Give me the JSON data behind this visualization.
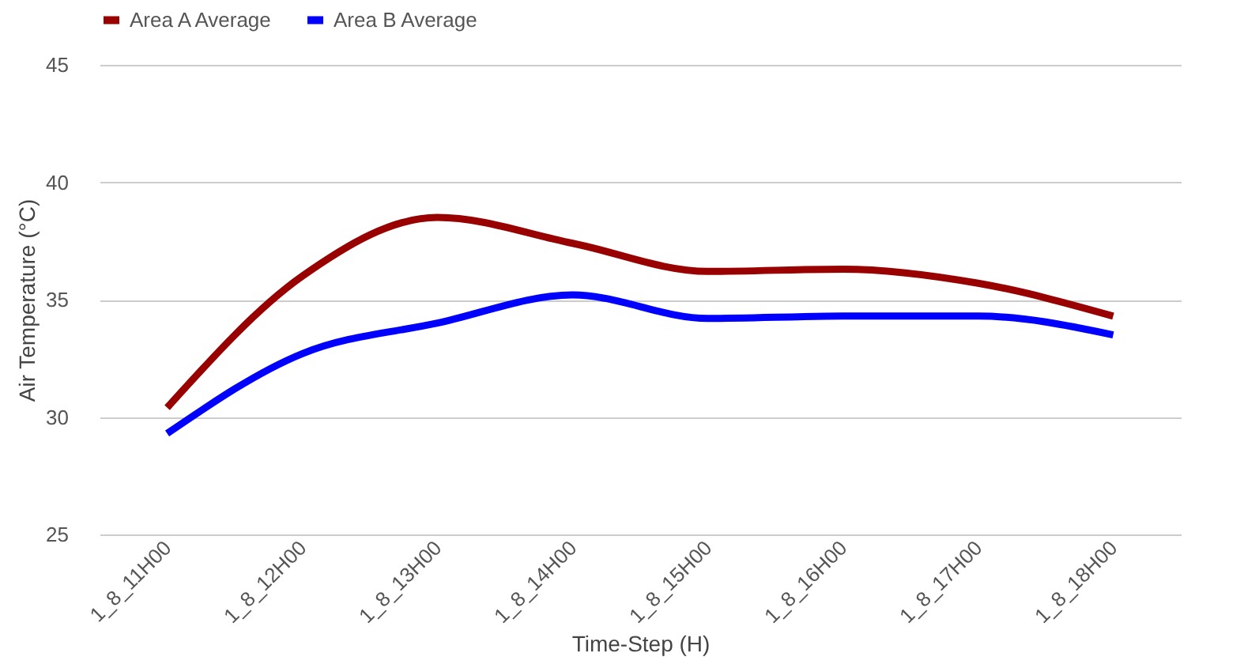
{
  "chart_data": {
    "type": "line",
    "xlabel": "Time-Step (H)",
    "ylabel": "Air Temperature (°C)",
    "categories": [
      "1_8_11H00",
      "1_8_12H00",
      "1_8_13H00",
      "1_8_14H00",
      "1_8_15H00",
      "1_8_16H00",
      "1_8_17H00",
      "1_8_18H00"
    ],
    "series": [
      {
        "name": "Area A Average",
        "color": "#990000",
        "values": [
          30.4,
          36.0,
          38.5,
          37.4,
          36.2,
          36.3,
          35.7,
          34.3
        ]
      },
      {
        "name": "Area B Average",
        "color": "#0000ff",
        "values": [
          29.3,
          32.7,
          34.0,
          35.2,
          34.2,
          34.3,
          34.3,
          33.5
        ]
      }
    ],
    "ylim": [
      25,
      45
    ],
    "yticks": [
      25,
      30,
      35,
      40,
      45
    ],
    "grid": "y",
    "legend": "top",
    "marker": "none",
    "line_style": "solid"
  }
}
